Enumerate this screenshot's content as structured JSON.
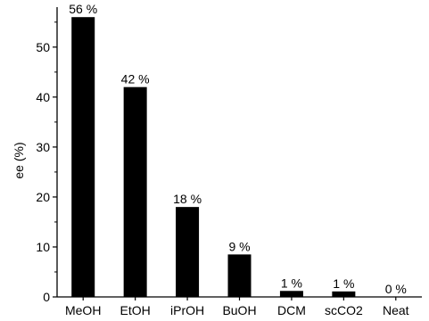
{
  "chart_data": {
    "type": "bar",
    "categories": [
      "MeOH",
      "EtOH",
      "iPrOH",
      "BuOH",
      "DCM",
      "scCO2",
      "Neat"
    ],
    "values": [
      56,
      42,
      18,
      8.5,
      1.2,
      1.1,
      0
    ],
    "data_labels": [
      "56 %",
      "42 %",
      "18 %",
      "9 %",
      "1 %",
      "1 %",
      "0 %"
    ],
    "title": "",
    "xlabel": "",
    "ylabel": "ee (%)",
    "ylim": [
      0,
      58
    ],
    "yticks": [
      0,
      10,
      20,
      30,
      40,
      50
    ],
    "grid": false,
    "bar_color": "#000000"
  }
}
